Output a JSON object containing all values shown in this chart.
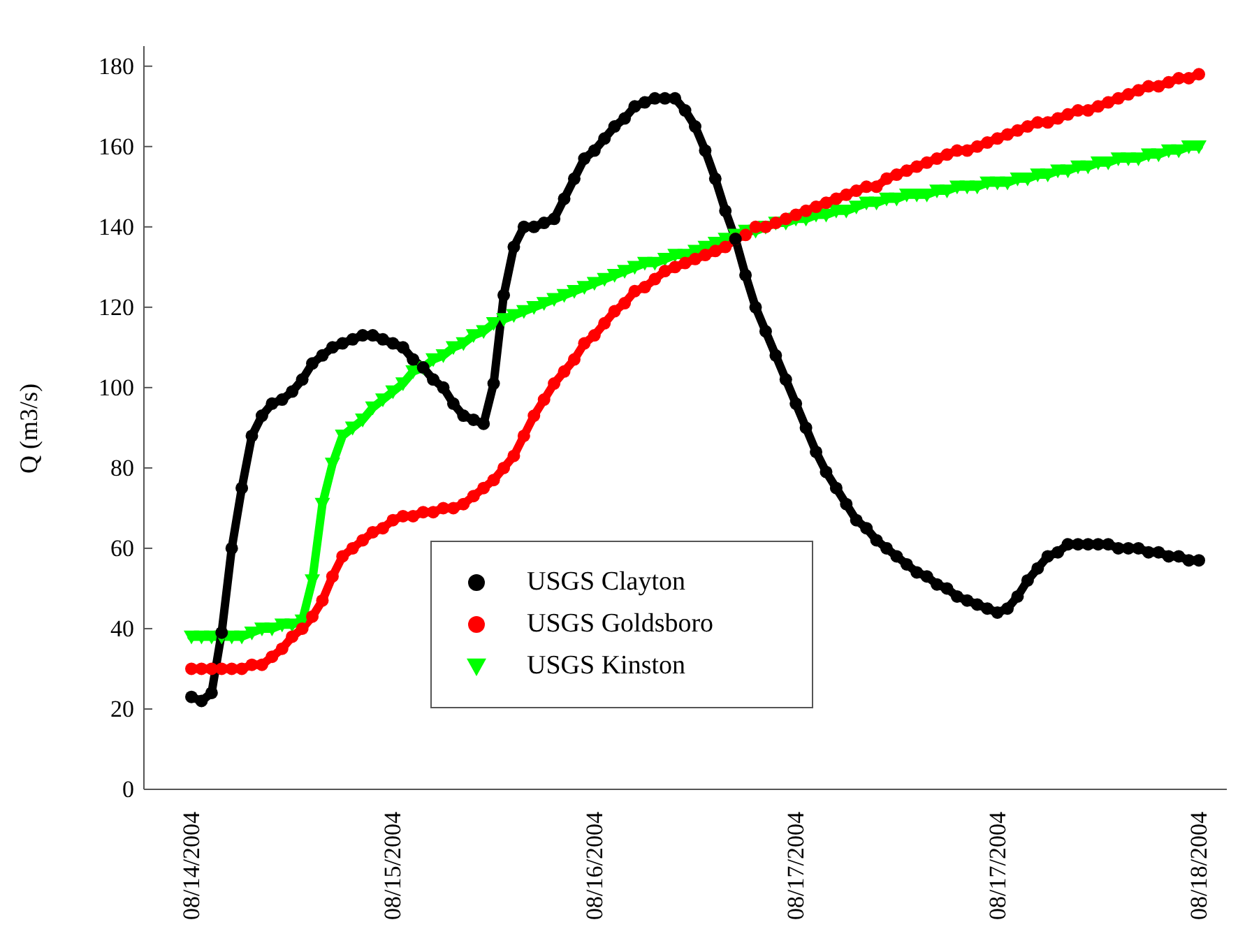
{
  "chart_data": {
    "type": "line",
    "ylabel": "Q (m3/s)",
    "categories": [
      "08/14/2004",
      null,
      null,
      null,
      null,
      null,
      null,
      null,
      null,
      null,
      null,
      null,
      null,
      null,
      null,
      null,
      null,
      null,
      null,
      null,
      "08/15/2004",
      null,
      null,
      null,
      null,
      null,
      null,
      null,
      null,
      null,
      null,
      null,
      null,
      null,
      null,
      null,
      null,
      null,
      null,
      null,
      "08/16/2004",
      null,
      null,
      null,
      null,
      null,
      null,
      null,
      null,
      null,
      null,
      null,
      null,
      null,
      null,
      null,
      null,
      null,
      null,
      null,
      "08/17/2004",
      null,
      null,
      null,
      null,
      null,
      null,
      null,
      null,
      null,
      null,
      null,
      null,
      null,
      null,
      null,
      null,
      null,
      null,
      null,
      "08/17/2004",
      null,
      null,
      null,
      null,
      null,
      null,
      null,
      null,
      null,
      null,
      null,
      null,
      null,
      null,
      null,
      null,
      null,
      null,
      null,
      "08/18/2004"
    ],
    "ylim": [
      0,
      185
    ],
    "yticks": [
      0,
      20,
      40,
      60,
      80,
      100,
      120,
      140,
      160,
      180
    ],
    "grid": false,
    "legend": "bottom",
    "series": [
      {
        "name": "USGS Clayton",
        "color": "#000000",
        "marker": "circle",
        "values": [
          23,
          22,
          24,
          39,
          60,
          75,
          88,
          93,
          96,
          97,
          99,
          102,
          106,
          108,
          110,
          111,
          112,
          113,
          113,
          112,
          111,
          110,
          107,
          105,
          102,
          100,
          96,
          93,
          92,
          91,
          101,
          123,
          135,
          140,
          140,
          141,
          142,
          147,
          152,
          157,
          159,
          162,
          165,
          167,
          170,
          171,
          172,
          172,
          172,
          169,
          165,
          159,
          152,
          144,
          137,
          128,
          120,
          114,
          108,
          102,
          96,
          90,
          84,
          79,
          75,
          71,
          67,
          65,
          62,
          60,
          58,
          56,
          54,
          53,
          51,
          50,
          48,
          47,
          46,
          45,
          44,
          45,
          48,
          52,
          55,
          58,
          59,
          61,
          61,
          61,
          61,
          61,
          60,
          60,
          60,
          59,
          59,
          58,
          58,
          57,
          57
        ]
      },
      {
        "name": "USGS Goldsboro",
        "color": "#ff0000",
        "marker": "circle",
        "values": [
          30,
          30,
          30,
          30,
          30,
          30,
          31,
          31,
          33,
          35,
          38,
          40,
          43,
          47,
          53,
          58,
          60,
          62,
          64,
          65,
          67,
          68,
          68,
          69,
          69,
          70,
          70,
          71,
          73,
          75,
          77,
          80,
          83,
          88,
          93,
          97,
          101,
          104,
          107,
          111,
          113,
          116,
          119,
          121,
          124,
          125,
          127,
          129,
          130,
          131,
          132,
          133,
          134,
          135,
          137,
          138,
          140,
          140,
          141,
          142,
          143,
          144,
          145,
          146,
          147,
          148,
          149,
          150,
          150,
          152,
          153,
          154,
          155,
          156,
          157,
          158,
          159,
          159,
          160,
          161,
          162,
          163,
          164,
          165,
          166,
          166,
          167,
          168,
          169,
          169,
          170,
          171,
          172,
          173,
          174,
          175,
          175,
          176,
          177,
          177,
          178
        ]
      },
      {
        "name": "USGS Kinston",
        "color": "#00ff00",
        "marker": "triangle",
        "values": [
          38,
          38,
          38,
          38,
          38,
          38,
          39,
          40,
          40,
          41,
          41,
          42,
          52,
          71,
          81,
          88,
          90,
          92,
          95,
          97,
          99,
          101,
          104,
          105,
          107,
          108,
          110,
          111,
          113,
          114,
          116,
          117,
          118,
          119,
          120,
          121,
          122,
          123,
          124,
          125,
          126,
          127,
          128,
          129,
          130,
          131,
          131,
          132,
          133,
          133,
          134,
          135,
          136,
          137,
          138,
          139,
          139,
          140,
          141,
          141,
          142,
          142,
          143,
          143,
          144,
          144,
          145,
          146,
          146,
          147,
          147,
          148,
          148,
          148,
          149,
          149,
          150,
          150,
          150,
          151,
          151,
          151,
          152,
          152,
          153,
          153,
          154,
          154,
          155,
          155,
          156,
          156,
          157,
          157,
          157,
          158,
          158,
          159,
          159,
          160,
          160
        ]
      }
    ]
  }
}
